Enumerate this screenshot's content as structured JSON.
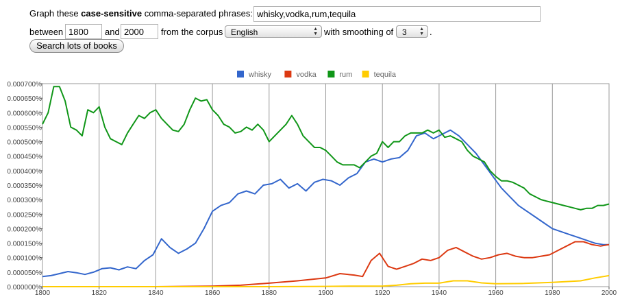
{
  "form": {
    "prompt_prefix": "Graph these",
    "prompt_bold": "case-sensitive",
    "prompt_suffix": "comma-separated phrases:",
    "phrases_value": "whisky,vodka,rum,tequila",
    "between_label": "between",
    "start_year": "1800",
    "and_label": "and",
    "end_year": "2000",
    "corpus_label": "from the corpus",
    "corpus_value": "English",
    "smoothing_label": "with smoothing of",
    "smoothing_value": "3",
    "trailing_period": ".",
    "search_button": "Search lots of books"
  },
  "chart_data": {
    "type": "line",
    "xlim": [
      1800,
      2000
    ],
    "ylim": [
      0,
      7e-06
    ],
    "x_ticks": [
      "1800",
      "1820",
      "1840",
      "1860",
      "1880",
      "1900",
      "1920",
      "1940",
      "1960",
      "1980",
      "2000"
    ],
    "y_ticks": [
      "0.000000%",
      "0.000050%",
      "0.000100%",
      "0.000150%",
      "0.000200%",
      "0.000250%",
      "0.000300%",
      "0.000350%",
      "0.000400%",
      "0.000450%",
      "0.000500%",
      "0.000550%",
      "0.000600%",
      "0.000650%",
      "0.000700%"
    ],
    "grid": "vertical",
    "legend": "top-center",
    "series": [
      {
        "name": "whisky",
        "color": "#3366cc",
        "x": [
          1800,
          1803,
          1806,
          1809,
          1812,
          1815,
          1818,
          1821,
          1824,
          1827,
          1830,
          1833,
          1836,
          1839,
          1842,
          1845,
          1848,
          1851,
          1854,
          1857,
          1860,
          1863,
          1866,
          1869,
          1872,
          1875,
          1878,
          1881,
          1884,
          1887,
          1890,
          1893,
          1896,
          1899,
          1902,
          1905,
          1908,
          1911,
          1914,
          1917,
          1920,
          1923,
          1926,
          1929,
          1932,
          1935,
          1938,
          1941,
          1944,
          1947,
          1950,
          1953,
          1956,
          1959,
          1962,
          1965,
          1968,
          1971,
          1974,
          1977,
          1980,
          1983,
          1986,
          1989,
          1992,
          1995,
          1998,
          2000
        ],
        "y": [
          3.5e-07,
          3.8e-07,
          4.5e-07,
          5.2e-07,
          4.8e-07,
          4.2e-07,
          5e-07,
          6.2e-07,
          6.5e-07,
          5.8e-07,
          6.8e-07,
          6.2e-07,
          9e-07,
          1.1e-06,
          1.65e-06,
          1.35e-06,
          1.15e-06,
          1.3e-06,
          1.5e-06,
          2e-06,
          2.6e-06,
          2.8e-06,
          2.9e-06,
          3.2e-06,
          3.3e-06,
          3.2e-06,
          3.5e-06,
          3.55e-06,
          3.7e-06,
          3.4e-06,
          3.55e-06,
          3.3e-06,
          3.6e-06,
          3.7e-06,
          3.65e-06,
          3.5e-06,
          3.75e-06,
          3.9e-06,
          4.3e-06,
          4.4e-06,
          4.3e-06,
          4.4e-06,
          4.45e-06,
          4.7e-06,
          5.2e-06,
          5.3e-06,
          5.1e-06,
          5.25e-06,
          5.4e-06,
          5.2e-06,
          4.9e-06,
          4.6e-06,
          4.2e-06,
          3.8e-06,
          3.4e-06,
          3.1e-06,
          2.8e-06,
          2.6e-06,
          2.4e-06,
          2.2e-06,
          2e-06,
          1.9e-06,
          1.8e-06,
          1.7e-06,
          1.6e-06,
          1.5e-06,
          1.45e-06,
          1.45e-06
        ]
      },
      {
        "name": "vodka",
        "color": "#dc3912",
        "x": [
          1800,
          1820,
          1840,
          1860,
          1870,
          1880,
          1890,
          1895,
          1900,
          1905,
          1910,
          1913,
          1916,
          1919,
          1922,
          1925,
          1928,
          1931,
          1934,
          1937,
          1940,
          1943,
          1946,
          1949,
          1952,
          1955,
          1958,
          1961,
          1964,
          1967,
          1970,
          1973,
          1976,
          1979,
          1982,
          1985,
          1988,
          1991,
          1994,
          1997,
          2000
        ],
        "y": [
          0,
          0,
          0,
          2e-08,
          5e-08,
          1.2e-07,
          2e-07,
          2.5e-07,
          3e-07,
          4.5e-07,
          4e-07,
          3.5e-07,
          9e-07,
          1.15e-06,
          7e-07,
          6e-07,
          7e-07,
          8e-07,
          9.5e-07,
          9e-07,
          1e-06,
          1.25e-06,
          1.35e-06,
          1.2e-06,
          1.05e-06,
          9.5e-07,
          1e-06,
          1.1e-06,
          1.15e-06,
          1.05e-06,
          1e-06,
          1e-06,
          1.05e-06,
          1.1e-06,
          1.25e-06,
          1.4e-06,
          1.55e-06,
          1.55e-06,
          1.45e-06,
          1.4e-06,
          1.45e-06
        ]
      },
      {
        "name": "rum",
        "color": "#109618",
        "x": [
          1800,
          1802,
          1804,
          1806,
          1808,
          1810,
          1812,
          1814,
          1816,
          1818,
          1820,
          1822,
          1824,
          1826,
          1828,
          1830,
          1832,
          1834,
          1836,
          1838,
          1840,
          1842,
          1844,
          1846,
          1848,
          1850,
          1852,
          1854,
          1856,
          1858,
          1860,
          1862,
          1864,
          1866,
          1868,
          1870,
          1872,
          1874,
          1876,
          1878,
          1880,
          1882,
          1884,
          1886,
          1888,
          1890,
          1892,
          1894,
          1896,
          1898,
          1900,
          1902,
          1904,
          1906,
          1908,
          1910,
          1912,
          1914,
          1916,
          1918,
          1920,
          1922,
          1924,
          1926,
          1928,
          1930,
          1932,
          1934,
          1936,
          1938,
          1940,
          1942,
          1944,
          1946,
          1948,
          1950,
          1952,
          1954,
          1956,
          1958,
          1960,
          1962,
          1964,
          1966,
          1968,
          1970,
          1972,
          1974,
          1976,
          1978,
          1980,
          1982,
          1984,
          1986,
          1988,
          1990,
          1992,
          1994,
          1996,
          1998,
          2000
        ],
        "y": [
          5.6e-06,
          6e-06,
          6.9e-06,
          6.9e-06,
          6.4e-06,
          5.5e-06,
          5.4e-06,
          5.2e-06,
          6.1e-06,
          6e-06,
          6.2e-06,
          5.5e-06,
          5.1e-06,
          5e-06,
          4.9e-06,
          5.3e-06,
          5.6e-06,
          5.9e-06,
          5.8e-06,
          6e-06,
          6.1e-06,
          5.8e-06,
          5.6e-06,
          5.4e-06,
          5.35e-06,
          5.6e-06,
          6.1e-06,
          6.5e-06,
          6.4e-06,
          6.45e-06,
          6.1e-06,
          5.9e-06,
          5.6e-06,
          5.5e-06,
          5.3e-06,
          5.35e-06,
          5.5e-06,
          5.4e-06,
          5.6e-06,
          5.4e-06,
          5e-06,
          5.2e-06,
          5.4e-06,
          5.6e-06,
          5.9e-06,
          5.6e-06,
          5.2e-06,
          5e-06,
          4.8e-06,
          4.8e-06,
          4.7e-06,
          4.5e-06,
          4.3e-06,
          4.2e-06,
          4.2e-06,
          4.2e-06,
          4.1e-06,
          4.3e-06,
          4.5e-06,
          4.6e-06,
          5e-06,
          4.8e-06,
          5e-06,
          5e-06,
          5.2e-06,
          5.3e-06,
          5.3e-06,
          5.3e-06,
          5.4e-06,
          5.3e-06,
          5.4e-06,
          5.15e-06,
          5.2e-06,
          5.1e-06,
          5e-06,
          4.7e-06,
          4.5e-06,
          4.4e-06,
          4.3e-06,
          4e-06,
          3.8e-06,
          3.65e-06,
          3.65e-06,
          3.6e-06,
          3.5e-06,
          3.4e-06,
          3.2e-06,
          3.1e-06,
          3e-06,
          2.95e-06,
          2.9e-06,
          2.85e-06,
          2.8e-06,
          2.75e-06,
          2.7e-06,
          2.65e-06,
          2.7e-06,
          2.7e-06,
          2.8e-06,
          2.8e-06,
          2.85e-06
        ]
      },
      {
        "name": "tequila",
        "color": "#ffcc00",
        "x": [
          1800,
          1880,
          1900,
          1910,
          1920,
          1925,
          1930,
          1935,
          1940,
          1945,
          1950,
          1955,
          1960,
          1970,
          1980,
          1990,
          1995,
          2000
        ],
        "y": [
          0,
          0,
          1e-08,
          2e-08,
          2e-08,
          5e-08,
          1e-07,
          1.2e-07,
          1.2e-07,
          2e-07,
          2e-07,
          1.3e-07,
          1e-07,
          1.1e-07,
          1.5e-07,
          2e-07,
          3e-07,
          3.8e-07
        ]
      }
    ]
  }
}
